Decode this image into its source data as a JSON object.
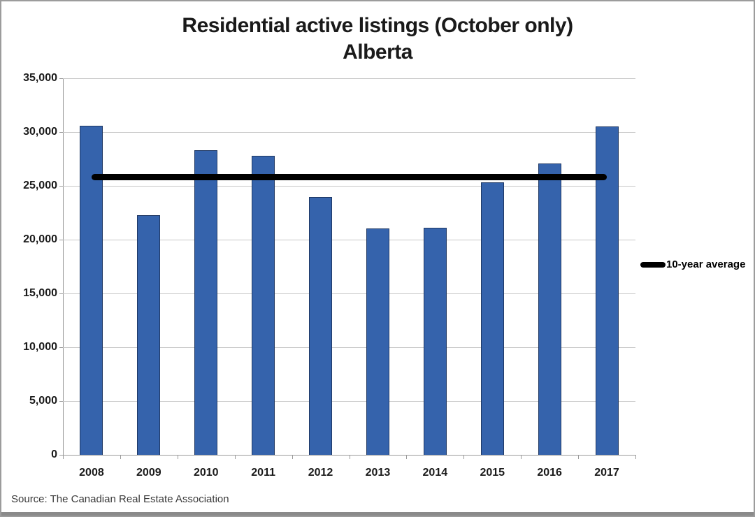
{
  "source_note": "Source: The Canadian Real Estate Association",
  "chart_data": {
    "type": "bar",
    "title": "Residential active listings (October only)",
    "subtitle": "Alberta",
    "categories": [
      "2008",
      "2009",
      "2010",
      "2011",
      "2012",
      "2013",
      "2014",
      "2015",
      "2016",
      "2017"
    ],
    "series": [
      {
        "name": "Residential active listings",
        "values": [
          30600,
          22250,
          28300,
          27800,
          23950,
          21050,
          21100,
          25300,
          27100,
          30500
        ]
      }
    ],
    "average_line": {
      "label": "10-year average",
      "value": 25795
    },
    "ylim": [
      0,
      35000
    ],
    "ytick_step": 5000,
    "ytick_labels": [
      "0",
      "5,000",
      "10,000",
      "15,000",
      "20,000",
      "25,000",
      "30,000",
      "35,000"
    ],
    "grid": true,
    "legend_position": "right",
    "colors": {
      "bar_fill": "#3563ac",
      "bar_border": "#1f3864",
      "average_line": "#000000",
      "gridline": "#c8c8c8",
      "axis": "#9a9a9a",
      "title_text": "#1a1a1a",
      "source_text": "#3a3a3a"
    }
  }
}
